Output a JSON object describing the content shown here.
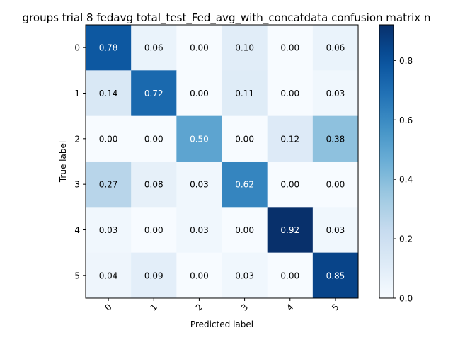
{
  "chart_data": {
    "type": "heatmap",
    "title": "groups trial 8 fedavg total_test_Fed_avg_with_concatdata confusion matrix n",
    "xlabel": "Predicted label",
    "ylabel": "True label",
    "x_categories": [
      "0",
      "1",
      "2",
      "3",
      "4",
      "5"
    ],
    "y_categories": [
      "0",
      "1",
      "2",
      "3",
      "4",
      "5"
    ],
    "values": [
      [
        0.78,
        0.06,
        0.0,
        0.1,
        0.0,
        0.06
      ],
      [
        0.14,
        0.72,
        0.0,
        0.11,
        0.0,
        0.03
      ],
      [
        0.0,
        0.0,
        0.5,
        0.0,
        0.12,
        0.38
      ],
      [
        0.27,
        0.08,
        0.03,
        0.62,
        0.0,
        0.0
      ],
      [
        0.03,
        0.0,
        0.03,
        0.0,
        0.92,
        0.03
      ],
      [
        0.04,
        0.09,
        0.0,
        0.03,
        0.0,
        0.85
      ]
    ],
    "value_format": "0.00",
    "colormap": "Blues",
    "colorbar": {
      "range": [
        0,
        0.92
      ],
      "ticks": [
        0.0,
        0.2,
        0.4,
        0.6,
        0.8
      ],
      "tick_labels": [
        "0.0",
        "0.2",
        "0.4",
        "0.6",
        "0.8"
      ]
    },
    "x_tick_rotation_deg": 45,
    "grid": false
  }
}
